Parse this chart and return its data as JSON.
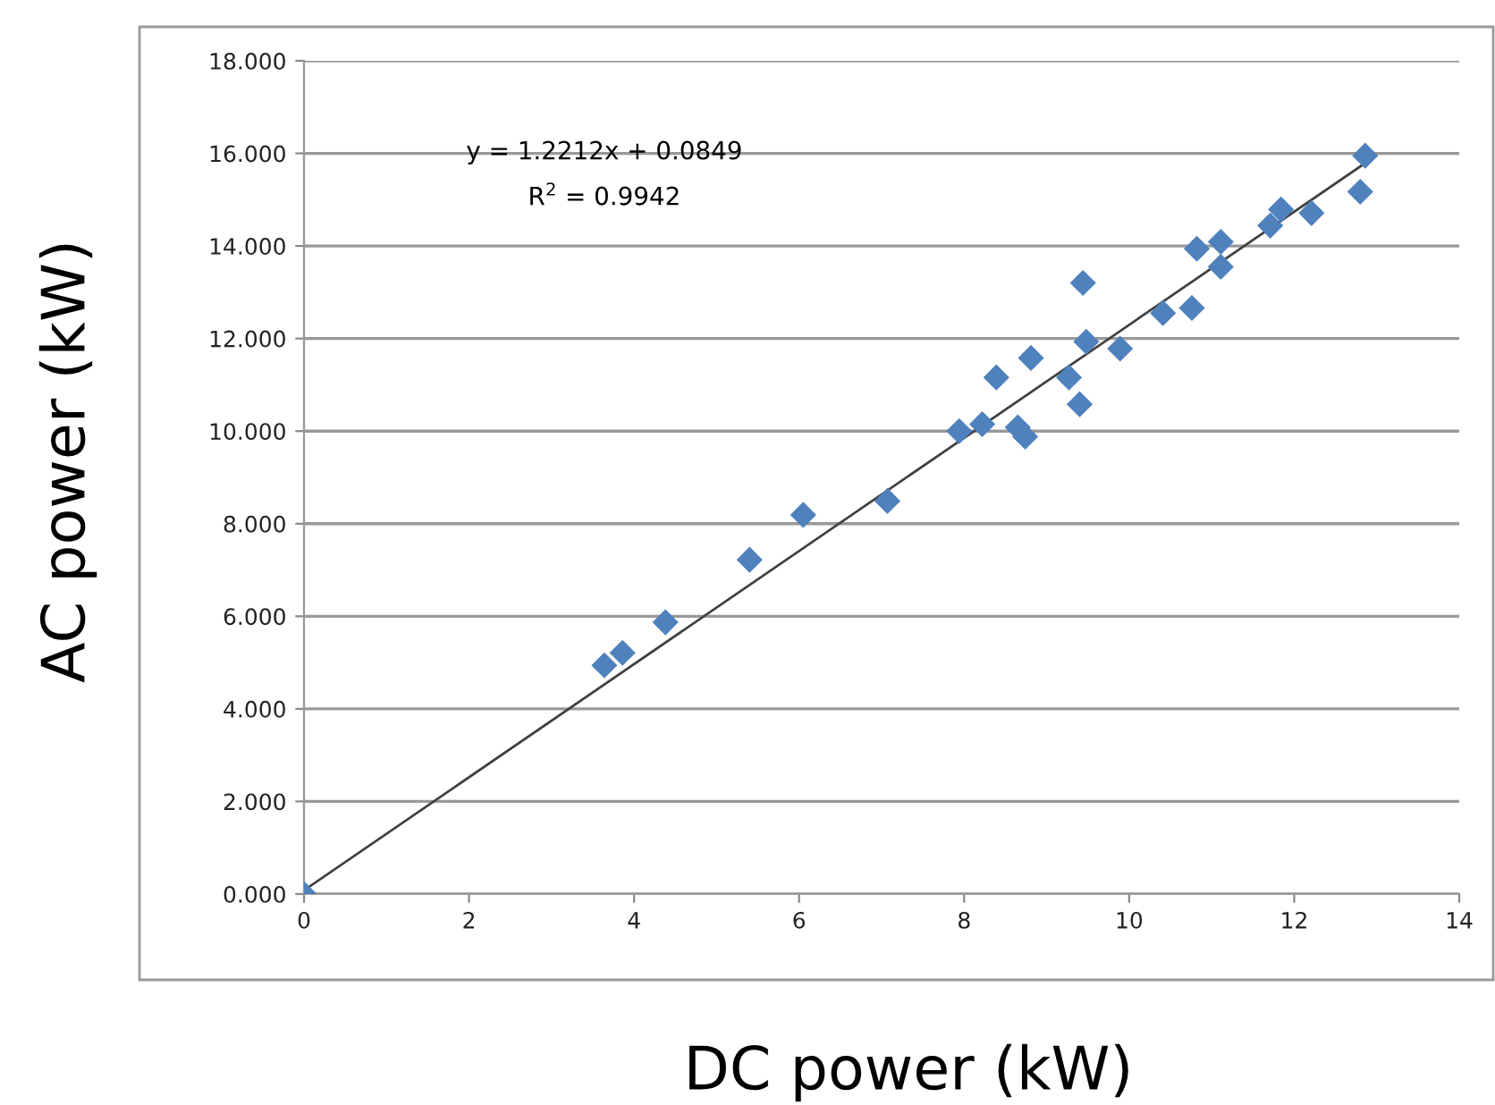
{
  "chart_data": {
    "type": "scatter",
    "xlabel": "DC power (kW)",
    "ylabel": "AC power (kW)",
    "annotations": [
      "y = 1.2212x + 0.0849",
      "R$^{2}$ = 0.9942"
    ],
    "series": [
      {
        "color": "#4f81bd",
        "marker": "diamond",
        "x": [
          0,
          3.64,
          3.86,
          4.38,
          5.4,
          6.05,
          7.07,
          7.94,
          8.22,
          8.39,
          8.65,
          8.74,
          8.81,
          9.27,
          9.4,
          9.44,
          9.48,
          9.89,
          10.41,
          10.76,
          10.82,
          11.11,
          11.11,
          11.71,
          11.84,
          12.21,
          12.8,
          12.86
        ],
        "values": [
          0,
          4.94,
          5.21,
          5.87,
          7.22,
          8.19,
          8.49,
          10.0,
          10.15,
          11.16,
          10.08,
          9.88,
          11.58,
          11.16,
          10.58,
          13.2,
          11.93,
          11.78,
          12.55,
          12.66,
          13.94,
          14.09,
          13.55,
          14.44,
          14.79,
          14.71,
          15.17,
          15.95
        ]
      },
      {
        "type": "line",
        "color": "#404040",
        "line_style": "solid",
        "x": [
          0,
          12.86
        ],
        "values": [
          0.08,
          15.79
        ]
      }
    ],
    "xlim": [
      0,
      14
    ],
    "xticks": [
      0,
      2,
      4,
      6,
      8,
      10,
      12,
      14
    ],
    "ylim": [
      0,
      18
    ],
    "yticks": [
      {
        "value": 0,
        "label": "0.000"
      },
      {
        "value": 2,
        "label": "2.000"
      },
      {
        "value": 4,
        "label": "4.000"
      },
      {
        "value": 6,
        "label": "6.000"
      },
      {
        "value": 8,
        "label": "8.000"
      },
      {
        "value": 10,
        "label": "10.000"
      },
      {
        "value": 12,
        "label": "12.000"
      },
      {
        "value": 14,
        "label": "14.000"
      },
      {
        "value": 16,
        "label": "16.000"
      },
      {
        "value": 18,
        "label": "18.000"
      }
    ],
    "grid": "y",
    "legend": false
  }
}
